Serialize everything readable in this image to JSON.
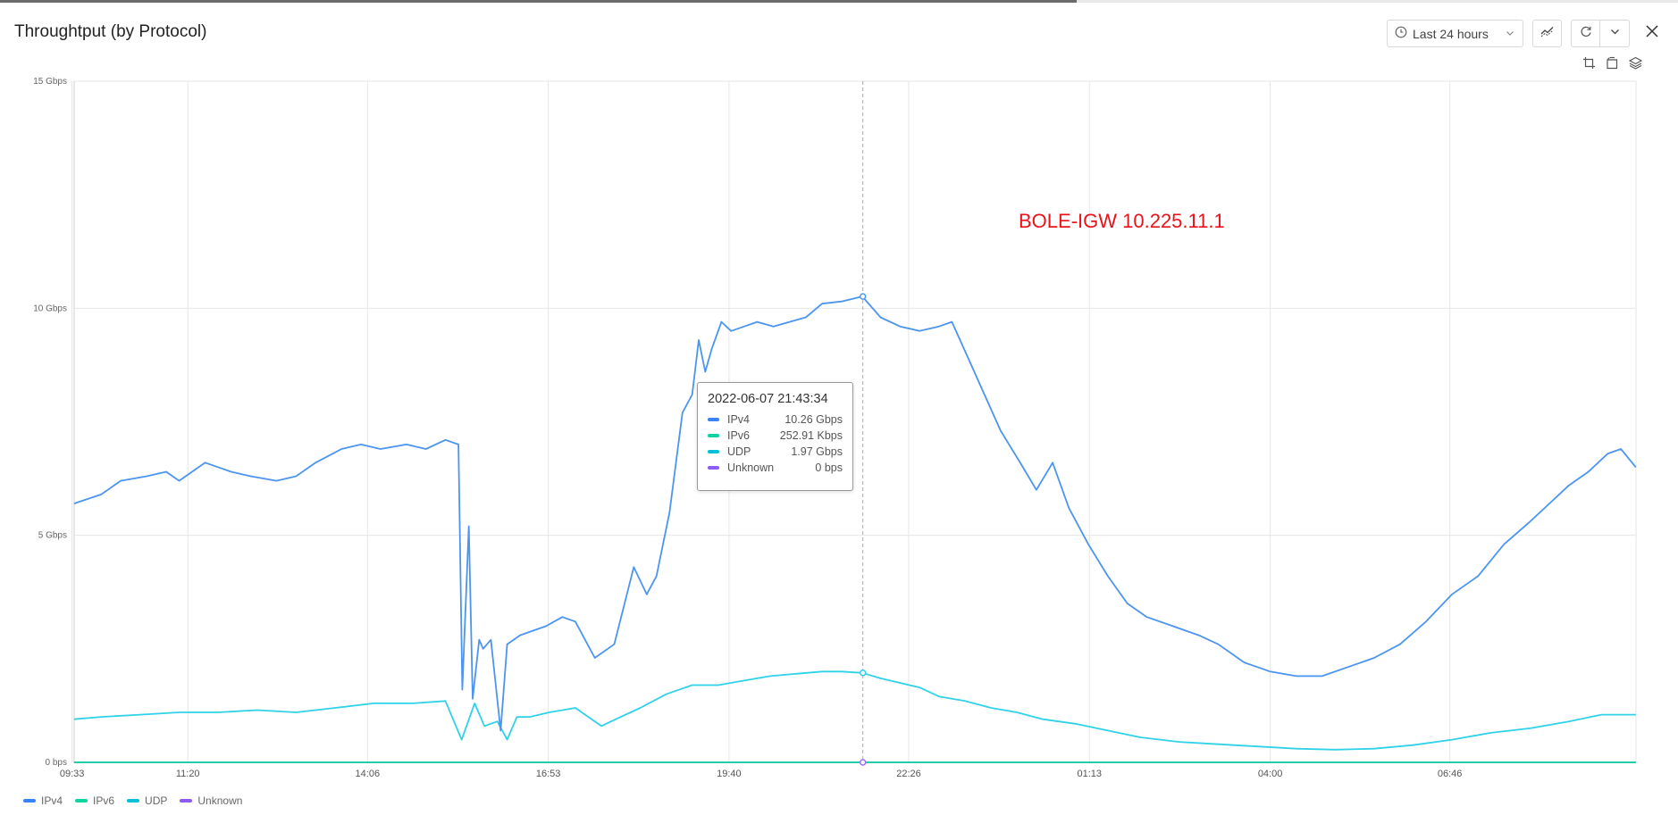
{
  "header": {
    "title": "Throughtput (by Protocol)",
    "time_range": "Last 24 hours"
  },
  "toolbar": {
    "time_icon": "clock-icon",
    "dropdown_icon": "chevron-down-icon",
    "trend_icon": "trend-icon",
    "refresh_icon": "refresh-icon",
    "more_icon": "chevron-down-icon",
    "close_icon": "close-icon",
    "crop_icon": "crop-icon",
    "restore_icon": "restore-icon",
    "layers_icon": "layers-icon"
  },
  "annotation": "BOLE-IGW 10.225.11.1",
  "tooltip": {
    "timestamp": "2022-06-07 21:43:34",
    "rows": [
      {
        "name": "IPv4",
        "value": "10.26 Gbps",
        "color": "#3b82f6"
      },
      {
        "name": "IPv6",
        "value": "252.91 Kbps",
        "color": "#10d4a0"
      },
      {
        "name": "UDP",
        "value": "1.97 Gbps",
        "color": "#06c0d9"
      },
      {
        "name": "Unknown",
        "value": "0 bps",
        "color": "#8b5cf6"
      }
    ]
  },
  "colors": {
    "IPv4": "#4b95f0",
    "IPv6": "#10d4a0",
    "UDP": "#2fd2e8",
    "Unknown": "#9b6cf2",
    "annotation": "#e8131b"
  },
  "chart_data": {
    "type": "line",
    "ylim": [
      0,
      15
    ],
    "y_ticks": [
      "0 bps",
      "5 Gbps",
      "10 Gbps",
      "15 Gbps"
    ],
    "x_ticks": [
      "11:20",
      "14:06",
      "16:53",
      "19:40",
      "22:26",
      "01:13",
      "04:00",
      "06:46",
      "09:33"
    ],
    "x_start_hour": 9.583,
    "x_end_hour": 33.633,
    "grid": true,
    "legend_placement": "bottom-left",
    "series": [
      {
        "name": "IPv4",
        "x": [
          9.58,
          10.0,
          10.3,
          10.7,
          11.0,
          11.2,
          11.6,
          12.0,
          12.3,
          12.7,
          13.0,
          13.3,
          13.7,
          14.0,
          14.3,
          14.7,
          15.0,
          15.3,
          15.5,
          15.56,
          15.66,
          15.72,
          15.82,
          15.88,
          16.0,
          16.15,
          16.25,
          16.35,
          16.45,
          16.65,
          16.85,
          17.1,
          17.3,
          17.6,
          17.9,
          18.2,
          18.4,
          18.55,
          18.75,
          18.95,
          19.1,
          19.2,
          19.3,
          19.4,
          19.55,
          19.7,
          19.9,
          20.1,
          20.35,
          20.6,
          20.85,
          21.1,
          21.4,
          21.72,
          22.0,
          22.3,
          22.6,
          22.9,
          23.1,
          23.35,
          23.6,
          23.85,
          24.15,
          24.4,
          24.65,
          24.9,
          25.2,
          25.5,
          25.8,
          26.1,
          26.5,
          26.9,
          27.2,
          27.6,
          28.0,
          28.4,
          28.8,
          29.2,
          29.6,
          30.0,
          30.4,
          30.8,
          31.2,
          31.6,
          32.0,
          32.3,
          32.6,
          32.9,
          33.2,
          33.4,
          33.63
        ],
        "values": [
          5.7,
          5.9,
          6.2,
          6.3,
          6.4,
          6.2,
          6.6,
          6.4,
          6.3,
          6.2,
          6.3,
          6.6,
          6.9,
          7.0,
          6.9,
          7.0,
          6.9,
          7.1,
          7.0,
          1.6,
          5.2,
          1.4,
          2.7,
          2.5,
          2.7,
          0.7,
          2.6,
          2.7,
          2.8,
          2.9,
          3.0,
          3.2,
          3.1,
          2.3,
          2.6,
          4.3,
          3.7,
          4.1,
          5.5,
          7.7,
          8.1,
          9.3,
          8.6,
          9.1,
          9.7,
          9.5,
          9.6,
          9.7,
          9.6,
          9.7,
          9.8,
          10.1,
          10.15,
          10.26,
          9.8,
          9.6,
          9.5,
          9.6,
          9.7,
          8.9,
          8.1,
          7.3,
          6.6,
          6.0,
          6.6,
          5.6,
          4.8,
          4.1,
          3.5,
          3.2,
          3.0,
          2.8,
          2.6,
          2.2,
          2.0,
          1.9,
          1.9,
          2.1,
          2.3,
          2.6,
          3.1,
          3.7,
          4.1,
          4.8,
          5.3,
          5.7,
          6.1,
          6.4,
          6.8,
          6.9,
          6.5
        ]
      },
      {
        "name": "IPv6",
        "x": [
          9.58,
          33.63
        ],
        "values": [
          0,
          0
        ]
      },
      {
        "name": "UDP",
        "x": [
          9.58,
          10.0,
          10.6,
          11.2,
          11.8,
          12.4,
          13.0,
          13.6,
          14.2,
          14.8,
          15.3,
          15.55,
          15.75,
          15.9,
          16.1,
          16.25,
          16.4,
          16.6,
          16.9,
          17.3,
          17.7,
          18.0,
          18.3,
          18.7,
          19.1,
          19.5,
          19.9,
          20.3,
          20.7,
          21.1,
          21.4,
          21.72,
          22.0,
          22.3,
          22.6,
          22.9,
          23.3,
          23.7,
          24.1,
          24.5,
          25.0,
          25.5,
          26.0,
          26.6,
          27.2,
          27.8,
          28.4,
          29.0,
          29.6,
          30.2,
          30.8,
          31.4,
          32.0,
          32.6,
          33.1,
          33.63
        ],
        "values": [
          0.95,
          1.0,
          1.05,
          1.1,
          1.1,
          1.15,
          1.1,
          1.2,
          1.3,
          1.3,
          1.35,
          0.5,
          1.3,
          0.8,
          0.9,
          0.5,
          1.0,
          1.0,
          1.1,
          1.2,
          0.8,
          1.0,
          1.2,
          1.5,
          1.7,
          1.7,
          1.8,
          1.9,
          1.95,
          2.0,
          2.0,
          1.97,
          1.85,
          1.75,
          1.65,
          1.45,
          1.35,
          1.2,
          1.1,
          0.95,
          0.85,
          0.7,
          0.55,
          0.45,
          0.4,
          0.35,
          0.3,
          0.28,
          0.3,
          0.38,
          0.5,
          0.65,
          0.75,
          0.9,
          1.05,
          1.05
        ]
      },
      {
        "name": "Unknown",
        "x": [
          9.58,
          33.63
        ],
        "values": [
          0,
          0
        ]
      }
    ],
    "crosshair_hour": 21.728
  }
}
